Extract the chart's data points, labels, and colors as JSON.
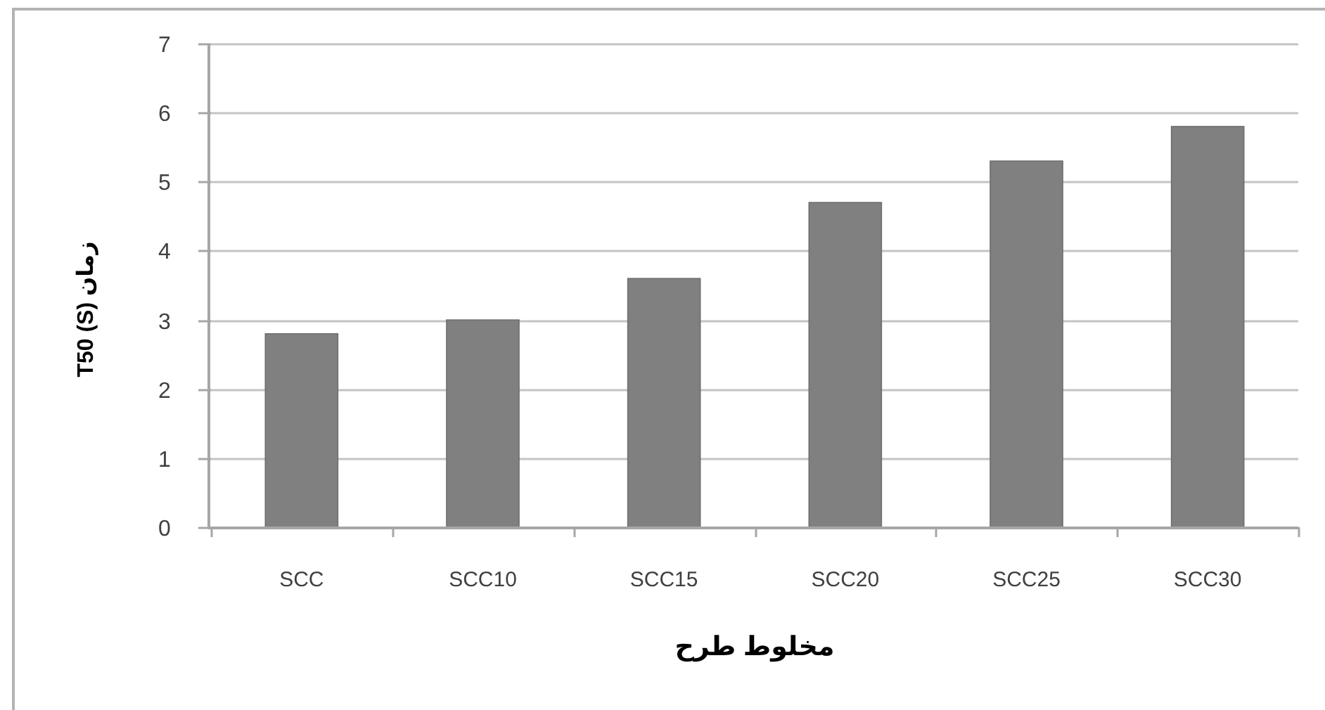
{
  "chart_data": {
    "type": "bar",
    "xlabel": "مخلوط طرح",
    "ylabel": "T50 (S) زمان",
    "categories": [
      "SCC",
      "SCC10",
      "SCC15",
      "SCC20",
      "SCC25",
      "SCC30"
    ],
    "values": [
      2.8,
      3.0,
      3.6,
      4.7,
      5.3,
      5.8
    ],
    "color": "#808080",
    "ylim": [
      0,
      7
    ],
    "yticks": [
      0,
      1,
      2,
      3,
      4,
      5,
      6,
      7
    ],
    "grid": "y"
  }
}
